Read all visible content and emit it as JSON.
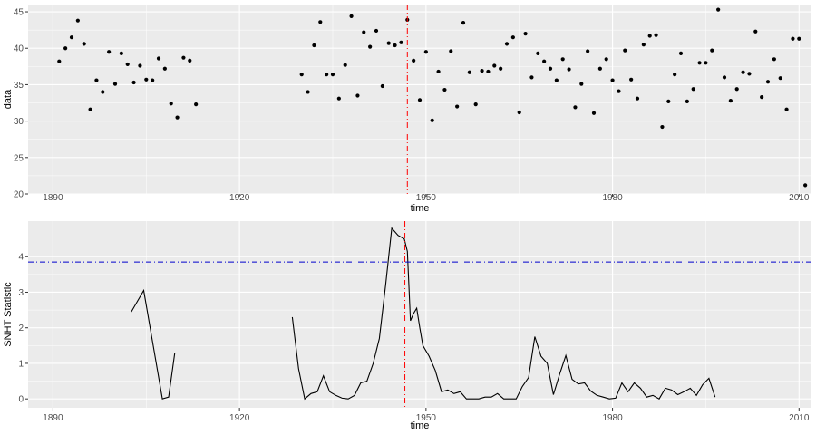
{
  "chart_data": [
    {
      "type": "scatter",
      "xlabel": "time",
      "ylabel": "data",
      "xlim": [
        1886,
        2012
      ],
      "ylim": [
        20,
        46
      ],
      "x_ticks": [
        1890,
        1920,
        1950,
        1980,
        2010
      ],
      "y_ticks": [
        20,
        25,
        30,
        35,
        40,
        45
      ],
      "grid": true,
      "background": "#ebebeb",
      "grid_color": "#ffffff",
      "point_color": "#000000",
      "vline": {
        "x": 1947,
        "color": "#ff0000",
        "style": "dotdash"
      },
      "series": [
        {
          "x": [
            1891,
            1892,
            1893,
            1894,
            1895,
            1896,
            1897,
            1898,
            1899,
            1900,
            1901,
            1902,
            1903,
            1904,
            1905,
            1906,
            1907,
            1908,
            1909,
            1910,
            1911,
            1912,
            1913,
            1930,
            1931,
            1932,
            1933,
            1934,
            1935,
            1936,
            1937,
            1938,
            1939,
            1940,
            1941,
            1942,
            1943,
            1944,
            1945,
            1946,
            1947,
            1948,
            1949,
            1950,
            1951,
            1952,
            1953,
            1954,
            1955,
            1956,
            1957,
            1958,
            1959,
            1960,
            1961,
            1962,
            1963,
            1964,
            1965,
            1966,
            1967,
            1968,
            1969,
            1970,
            1971,
            1972,
            1973,
            1974,
            1975,
            1976,
            1977,
            1978,
            1979,
            1980,
            1981,
            1982,
            1983,
            1984,
            1985,
            1986,
            1987,
            1988,
            1989,
            1990,
            1991,
            1992,
            1993,
            1994,
            1995,
            1996,
            1997,
            1998,
            1999,
            2000,
            2001,
            2002,
            2003,
            2004,
            2005,
            2006,
            2007,
            2008,
            2009,
            2010,
            2011
          ],
          "y": [
            38.2,
            40.0,
            41.5,
            43.8,
            40.6,
            31.6,
            35.6,
            34.0,
            39.5,
            35.1,
            39.3,
            37.8,
            35.3,
            37.6,
            35.7,
            35.6,
            38.6,
            37.2,
            32.4,
            30.5,
            38.7,
            38.3,
            32.3,
            36.4,
            34.0,
            40.4,
            43.6,
            36.4,
            36.4,
            33.1,
            37.7,
            44.4,
            33.5,
            42.2,
            40.2,
            42.4,
            34.8,
            40.7,
            40.4,
            40.8,
            43.9,
            38.3,
            32.9,
            39.5,
            30.1,
            36.8,
            34.3,
            39.6,
            32.0,
            43.5,
            36.7,
            32.3,
            36.9,
            36.8,
            37.6,
            37.2,
            40.6,
            41.5,
            31.2,
            42.0,
            36.0,
            39.3,
            38.2,
            37.2,
            35.6,
            38.5,
            37.1,
            31.9,
            35.1,
            39.6,
            31.1,
            37.2,
            38.5,
            35.6,
            34.1,
            39.7,
            35.7,
            33.1,
            40.5,
            41.7,
            41.8,
            29.2,
            32.7,
            36.4,
            39.3,
            32.7,
            34.4,
            38.0,
            38.0,
            39.7,
            45.3,
            36.0,
            32.8,
            34.4,
            36.7,
            36.5,
            42.3,
            33.3,
            35.4,
            38.5,
            35.9,
            31.6,
            41.3,
            41.3,
            21.2
          ]
        }
      ]
    },
    {
      "type": "line",
      "xlabel": "time",
      "ylabel": "SNHT Statistic",
      "xlim": [
        1886,
        2012
      ],
      "ylim": [
        -0.25,
        5.0
      ],
      "x_ticks": [
        1890,
        1920,
        1950,
        1980,
        2010
      ],
      "y_ticks": [
        0,
        1,
        2,
        3,
        4
      ],
      "grid": true,
      "background": "#ebebeb",
      "grid_color": "#ffffff",
      "line_color": "#000000",
      "vline": {
        "x": 1946.6,
        "color": "#ff0000",
        "style": "dotdash"
      },
      "hline": {
        "y": 3.85,
        "color": "#0000cc",
        "style": "dotdash"
      },
      "series": [
        {
          "segments": [
            {
              "x": [
                1902.6,
                1904.6,
                1907.6,
                1908.6,
                1909.6
              ],
              "y": [
                2.45,
                3.05,
                0.0,
                0.05,
                1.3
              ]
            },
            {
              "x": [
                1928.5,
                1929.5,
                1930.5,
                1931.5,
                1932.5,
                1933.5,
                1934.5,
                1935.5,
                1936.5,
                1937.5,
                1938.5,
                1939.5,
                1940.5,
                1941.5,
                1942.5,
                1943.5,
                1944.5,
                1945.5,
                1946.5,
                1947.0,
                1947.5,
                1948.0,
                1948.5,
                1949.0,
                1949.5,
                1950.5,
                1951.5,
                1952.5,
                1953.5,
                1954.5,
                1955.5,
                1956.5,
                1957.5,
                1958.5,
                1959.5,
                1960.5,
                1961.5,
                1962.5,
                1963.5,
                1964.5,
                1965.5,
                1966.5,
                1967.5,
                1968.5,
                1969.5,
                1970.5,
                1971.5,
                1972.5,
                1973.5,
                1974.5,
                1975.5,
                1976.5,
                1977.5,
                1978.5,
                1979.5,
                1980.5,
                1981.5,
                1982.5,
                1983.5,
                1984.5,
                1985.5,
                1986.5,
                1987.5,
                1988.5,
                1989.5,
                1990.5,
                1991.5,
                1992.5,
                1993.5,
                1994.5,
                1995.5,
                1996.5
              ],
              "y": [
                2.3,
                0.85,
                0.0,
                0.15,
                0.2,
                0.65,
                0.2,
                0.1,
                0.02,
                0.0,
                0.1,
                0.45,
                0.5,
                1.0,
                1.7,
                3.2,
                4.8,
                4.6,
                4.5,
                4.15,
                2.2,
                2.4,
                2.55,
                2.0,
                1.5,
                1.2,
                0.8,
                0.2,
                0.25,
                0.15,
                0.2,
                0.0,
                0.0,
                0.0,
                0.05,
                0.05,
                0.15,
                0.0,
                0.0,
                0.0,
                0.35,
                0.6,
                1.75,
                1.2,
                1.0,
                0.12,
                0.7,
                1.22,
                0.55,
                0.42,
                0.45,
                0.22,
                0.1,
                0.05,
                0.0,
                0.02,
                0.45,
                0.2,
                0.45,
                0.3,
                0.05,
                0.1,
                0.0,
                0.3,
                0.25,
                0.12,
                0.2,
                0.3,
                0.1,
                0.4,
                0.58,
                0.05
              ]
            }
          ]
        }
      ]
    }
  ]
}
